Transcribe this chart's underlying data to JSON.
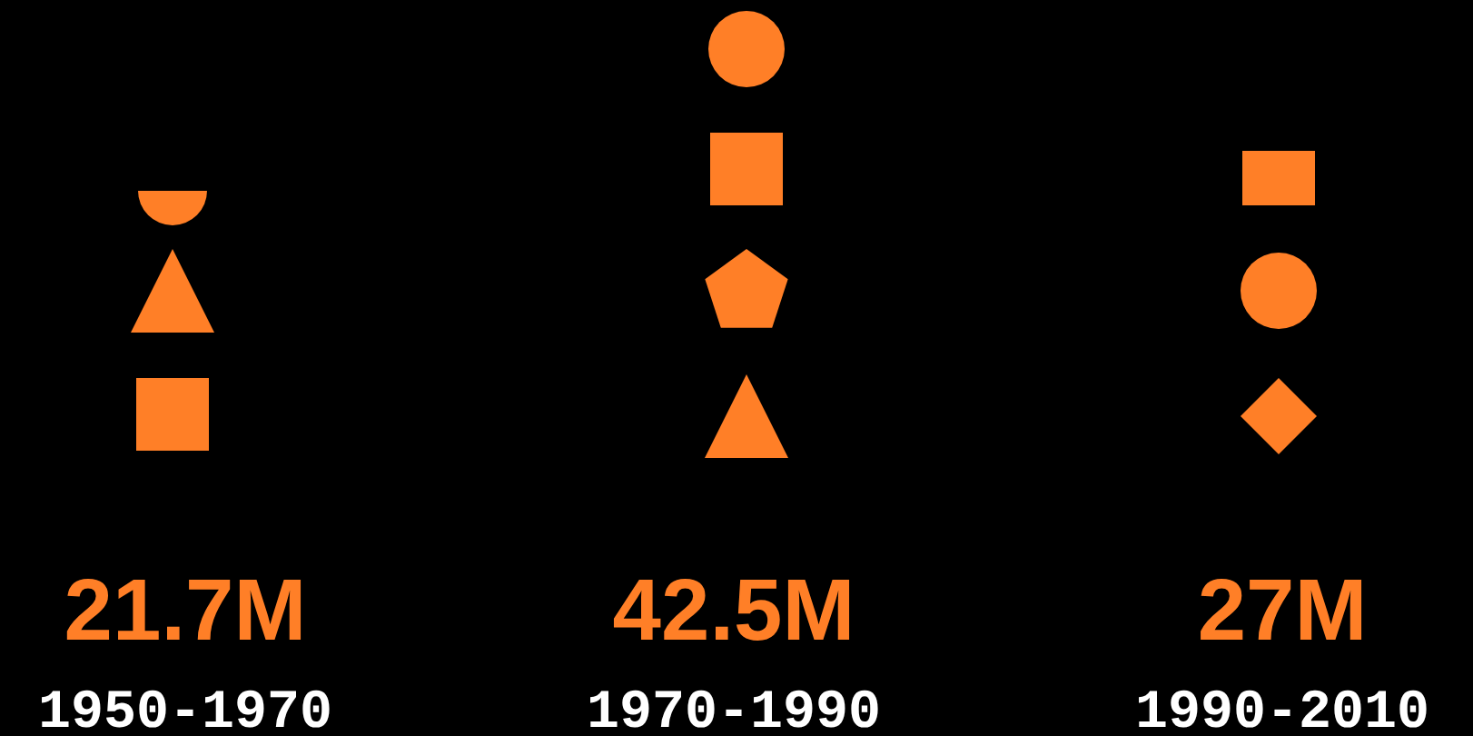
{
  "chart_data": {
    "type": "other",
    "categories": [
      "1950-1970",
      "1970-1990",
      "1990-2010"
    ],
    "values": [
      21.7,
      42.5,
      27
    ],
    "value_labels": [
      "21.7M",
      "42.5M",
      "27M"
    ],
    "color": "#ff7f27"
  }
}
